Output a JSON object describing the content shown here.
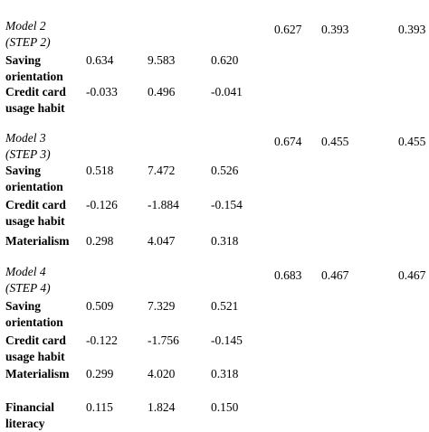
{
  "table": {
    "rows": [
      {
        "kind": "model",
        "label": [
          "Model 2",
          "(STEP 2)"
        ],
        "fit": [
          "0.627",
          "0.393",
          "0.393"
        ]
      },
      {
        "kind": "predictor",
        "label": [
          "Saving",
          "orientation"
        ],
        "values": [
          "0.634",
          "9.583",
          "0.620"
        ]
      },
      {
        "kind": "predictor",
        "label": [
          "Credit card",
          "usage habit"
        ],
        "values": [
          "-0.033",
          "0.496",
          "-0.041"
        ]
      },
      {
        "kind": "model",
        "label": [
          "Model 3",
          "(STEP 3)"
        ],
        "fit": [
          "0.674",
          "0.455",
          "0.455"
        ]
      },
      {
        "kind": "predictor",
        "label": [
          "Saving",
          "orientation"
        ],
        "values": [
          "0.518",
          "7.472",
          "0.526"
        ]
      },
      {
        "kind": "predictor",
        "label": [
          "Credit card",
          "usage habit"
        ],
        "values": [
          "-0.126",
          "-1.884",
          "-0.154"
        ]
      },
      {
        "kind": "predictor",
        "label": [
          "Materialism"
        ],
        "values": [
          "0.298",
          "4.047",
          "0.318"
        ]
      },
      {
        "kind": "model",
        "label": [
          "Model 4",
          "(STEP 4)"
        ],
        "fit": [
          "0.683",
          "0.467",
          "0.467"
        ]
      },
      {
        "kind": "predictor",
        "label": [
          "Saving",
          "orientation"
        ],
        "values": [
          "0.509",
          "7.329",
          "0.521"
        ]
      },
      {
        "kind": "predictor",
        "label": [
          "Credit card",
          "usage habit"
        ],
        "values": [
          "-0.122",
          "-1.756",
          "-0.145"
        ]
      },
      {
        "kind": "predictor",
        "label": [
          "Materialism"
        ],
        "values": [
          "0.299",
          "4.020",
          "0.318"
        ]
      },
      {
        "kind": "predictor",
        "label": [
          "Financial",
          "literacy"
        ],
        "values": [
          "0.115",
          "1.824",
          "0.150"
        ]
      }
    ]
  }
}
